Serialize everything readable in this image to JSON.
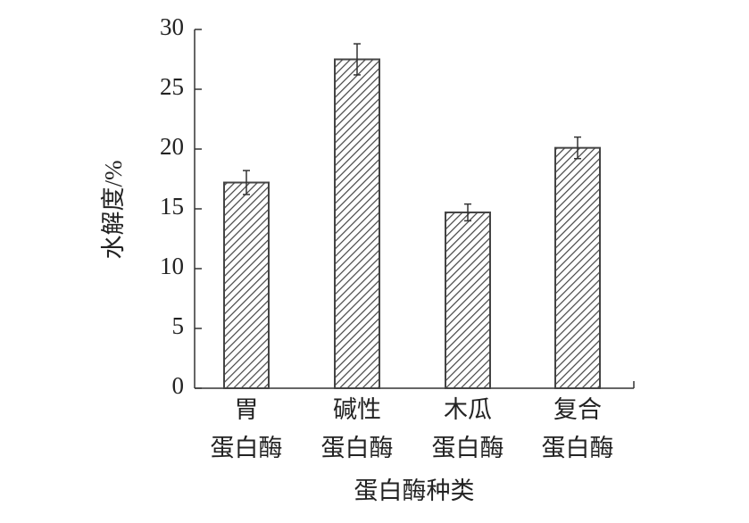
{
  "chart_data": {
    "type": "bar",
    "y_label": "水解度/%",
    "x_label": "蛋白酶种类",
    "categories": [
      [
        "胃",
        "蛋白酶"
      ],
      [
        "碱性",
        "蛋白酶"
      ],
      [
        "木瓜",
        "蛋白酶"
      ],
      [
        "复合",
        "蛋白酶"
      ]
    ],
    "values": [
      17.2,
      27.5,
      14.7,
      20.1
    ],
    "errors": [
      1.0,
      1.3,
      0.7,
      0.9
    ],
    "color": "#444444",
    "ylim": [
      0,
      30
    ],
    "yticks": [
      0,
      5,
      10,
      15,
      20,
      25,
      30
    ],
    "grid": false
  }
}
